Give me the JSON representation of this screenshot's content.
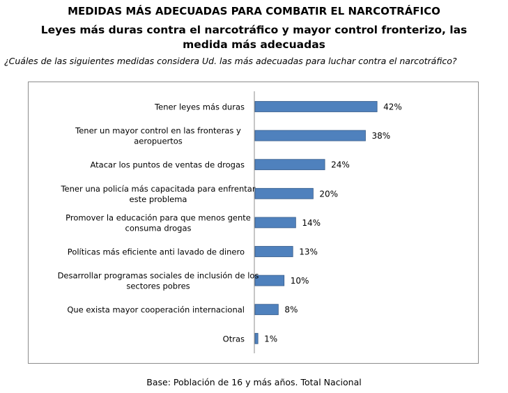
{
  "header": {
    "title": "MEDIDAS MÁS ADECUADAS PARA COMBATIR EL NARCOTRÁFICO",
    "subtitle": "Leyes más duras contra el narcotráfico y mayor control fronterizo, las medida más adecuadas",
    "question": "¿Cuáles de las siguientes medidas considera  Ud. las más adecuadas para luchar contra el narcotráfico?"
  },
  "footer": {
    "base": "Base: Población de 16 y más años. Total Nacional"
  },
  "colors": {
    "bar": "#4f81bd",
    "bar_border": "#385d8a",
    "axis": "#8c8c8c"
  },
  "chart_data": {
    "type": "bar",
    "orientation": "horizontal",
    "title": "MEDIDAS MÁS ADECUADAS PARA COMBATIR EL NARCOTRÁFICO",
    "xlabel": "",
    "ylabel": "",
    "xlim": [
      0,
      100
    ],
    "grid": false,
    "value_suffix": "%",
    "categories": [
      [
        "Tener leyes  más duras"
      ],
      [
        "Tener un mayor control en las fronteras y",
        "aeropuertos"
      ],
      [
        "Atacar los puntos de ventas de drogas"
      ],
      [
        "Tener una policía  más capacitada para enfrentar",
        "este problema"
      ],
      [
        "Promover la educación para  que menos gente",
        "consuma drogas"
      ],
      [
        "Políticas más eficiente  anti lavado de dinero"
      ],
      [
        "Desarrollar programas sociales de inclusión de los",
        "sectores pobres"
      ],
      [
        "Que exista mayor cooperación internacional"
      ],
      [
        "Otras"
      ]
    ],
    "values": [
      42,
      38,
      24,
      20,
      14,
      13,
      10,
      8,
      1
    ],
    "data_labels": [
      "42%",
      "38%",
      "24%",
      "20%",
      "14%",
      "13%",
      "10%",
      "8%",
      "1%"
    ]
  }
}
